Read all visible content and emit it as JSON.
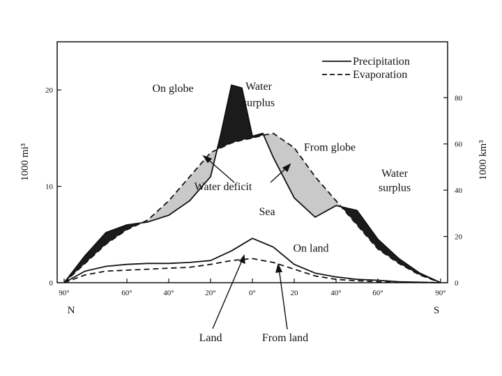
{
  "chart_data": {
    "type": "line",
    "title": "",
    "left_axis_label": "1000 mi³",
    "right_axis_label": "1000 km³",
    "x_ticks": [
      "90°",
      "60°",
      "40°",
      "20°",
      "0°",
      "20",
      "40°",
      "60°",
      "90°"
    ],
    "x_tick_values": [
      -90,
      -60,
      -40,
      -20,
      0,
      20,
      40,
      60,
      90
    ],
    "x_end_labels": {
      "left": "N",
      "right": "S"
    },
    "xlim": [
      -90,
      90
    ],
    "left_ticks": [
      "0",
      "10",
      "20"
    ],
    "left_tick_values": [
      0,
      10,
      20
    ],
    "ylim": [
      0,
      25
    ],
    "right_ticks": [
      "0",
      "20",
      "40",
      "60",
      "80"
    ],
    "right_tick_values_km3": [
      0,
      20,
      40,
      60,
      80
    ],
    "km3_per_mi3": 4.1667,
    "legend": {
      "position": "top-right",
      "entries": [
        {
          "label": "Precipitation",
          "style": "solid"
        },
        {
          "label": "Evaporation",
          "style": "dashed"
        }
      ]
    },
    "series": [
      {
        "name": "Precipitation",
        "group": "globe",
        "style": "solid",
        "x": [
          -90,
          -80,
          -70,
          -60,
          -50,
          -40,
          -30,
          -20,
          -15,
          -10,
          -5,
          0,
          5,
          10,
          20,
          30,
          40,
          50,
          60,
          70,
          80,
          90
        ],
        "y": [
          0,
          2.8,
          5.2,
          6.0,
          6.3,
          7.0,
          8.5,
          11.0,
          15.5,
          20.5,
          20.2,
          15.2,
          15.5,
          13.0,
          8.8,
          6.8,
          8.0,
          7.5,
          4.5,
          2.5,
          1.0,
          0
        ]
      },
      {
        "name": "Evaporation",
        "group": "globe",
        "style": "dashed",
        "x": [
          -90,
          -80,
          -70,
          -60,
          -50,
          -40,
          -30,
          -20,
          -10,
          -5,
          0,
          5,
          10,
          20,
          30,
          40,
          50,
          60,
          70,
          80,
          90
        ],
        "y": [
          0,
          2.0,
          4.0,
          5.5,
          6.5,
          8.5,
          11.0,
          13.5,
          14.5,
          14.8,
          15.0,
          15.3,
          15.5,
          14.0,
          11.0,
          8.5,
          6.0,
          3.5,
          2.0,
          0.8,
          0
        ]
      },
      {
        "name": "Precipitation",
        "group": "land",
        "style": "solid",
        "x": [
          -90,
          -80,
          -70,
          -60,
          -50,
          -40,
          -30,
          -20,
          -10,
          0,
          10,
          20,
          30,
          40,
          50,
          60,
          70,
          80,
          90
        ],
        "y": [
          0,
          1.2,
          1.7,
          1.9,
          2.0,
          2.0,
          2.1,
          2.3,
          3.3,
          4.6,
          3.7,
          1.9,
          1.0,
          0.6,
          0.35,
          0.25,
          0.1,
          0.05,
          0
        ]
      },
      {
        "name": "Evaporation",
        "group": "land",
        "style": "dashed",
        "x": [
          -90,
          -80,
          -70,
          -60,
          -50,
          -40,
          -30,
          -20,
          -10,
          0,
          10,
          20,
          30,
          40,
          50,
          60,
          70,
          80,
          90
        ],
        "y": [
          0,
          0.8,
          1.2,
          1.3,
          1.4,
          1.5,
          1.6,
          1.9,
          2.3,
          2.5,
          2.1,
          1.4,
          0.7,
          0.35,
          0.2,
          0.1,
          0.05,
          0.02,
          0
        ]
      }
    ],
    "shading": {
      "surplus_color": "#1b1b1b",
      "deficit_color": "#c9c9c9"
    },
    "annotations": [
      {
        "text": "On globe",
        "x": -38,
        "y": 19.8
      },
      {
        "text": "Water",
        "x": 3,
        "y": 20.0
      },
      {
        "text": "surplus",
        "x": 3,
        "y": 18.3
      },
      {
        "text": "From globe",
        "x": 37,
        "y": 13.7
      },
      {
        "text": "Water",
        "x": 68,
        "y": 11.0
      },
      {
        "text": "surplus",
        "x": 68,
        "y": 9.5
      },
      {
        "text": "Water deficit",
        "x": -14,
        "y": 9.6
      },
      {
        "text": "Sea",
        "x": 7,
        "y": 7.0
      },
      {
        "text": "On land",
        "x": 28,
        "y": 3.2
      }
    ],
    "bottom_labels": [
      {
        "text": "Land",
        "x": -34
      },
      {
        "text": "From land",
        "x": 12
      }
    ]
  }
}
